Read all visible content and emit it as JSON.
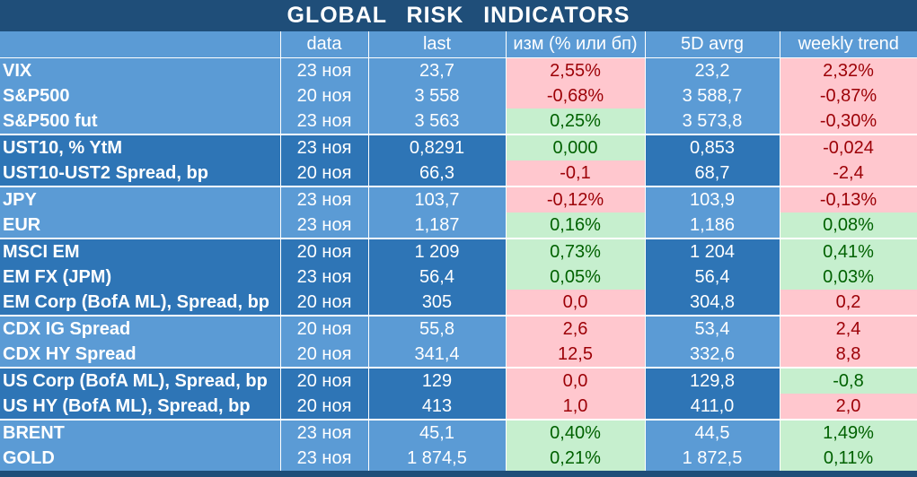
{
  "title": "GLOBAL   RISK   INDICATORS",
  "columns": [
    "",
    "data",
    "last",
    "изм (% или бп)",
    "5D avrg",
    "weekly trend"
  ],
  "rows": [
    {
      "name": "VIX",
      "date": "23 ноя",
      "last": "23,7",
      "chg": "2,55%",
      "chg_sign": "neg",
      "avg": "23,2",
      "trend": "2,32%",
      "trend_sign": "neg",
      "shade": "light",
      "group_end": false
    },
    {
      "name": "S&P500",
      "date": "20 ноя",
      "last": "3 558",
      "chg": "-0,68%",
      "chg_sign": "neg",
      "avg": "3 588,7",
      "trend": "-0,87%",
      "trend_sign": "neg",
      "shade": "light",
      "group_end": false
    },
    {
      "name": "S&P500 fut",
      "date": "23 ноя",
      "last": "3 563",
      "chg": "0,25%",
      "chg_sign": "pos",
      "avg": "3 573,8",
      "trend": "-0,30%",
      "trend_sign": "neg",
      "shade": "light",
      "group_end": true
    },
    {
      "name": "UST10, % YtM",
      "date": "23 ноя",
      "last": "0,8291",
      "chg": "0,000",
      "chg_sign": "pos",
      "avg": "0,853",
      "trend": "-0,024",
      "trend_sign": "neg",
      "shade": "dark",
      "group_end": false
    },
    {
      "name": "UST10-UST2 Spread, bp",
      "date": "20 ноя",
      "last": "66,3",
      "chg": "-0,1",
      "chg_sign": "neg",
      "avg": "68,7",
      "trend": "-2,4",
      "trend_sign": "neg",
      "shade": "dark",
      "group_end": true
    },
    {
      "name": "JPY",
      "date": "23 ноя",
      "last": "103,7",
      "chg": "-0,12%",
      "chg_sign": "neg",
      "avg": "103,9",
      "trend": "-0,13%",
      "trend_sign": "neg",
      "shade": "light",
      "group_end": false
    },
    {
      "name": "EUR",
      "date": "23 ноя",
      "last": "1,187",
      "chg": "0,16%",
      "chg_sign": "pos",
      "avg": "1,186",
      "trend": "0,08%",
      "trend_sign": "pos",
      "shade": "light",
      "group_end": true
    },
    {
      "name": "MSCI EM",
      "date": "20 ноя",
      "last": "1 209",
      "chg": "0,73%",
      "chg_sign": "pos",
      "avg": "1 204",
      "trend": "0,41%",
      "trend_sign": "pos",
      "shade": "dark",
      "group_end": false
    },
    {
      "name": "EM FX (JPM)",
      "date": "23 ноя",
      "last": "56,4",
      "chg": "0,05%",
      "chg_sign": "pos",
      "avg": "56,4",
      "trend": "0,03%",
      "trend_sign": "pos",
      "shade": "dark",
      "group_end": false
    },
    {
      "name": "EM Corp (BofA ML), Spread, bp",
      "date": "20 ноя",
      "last": "305",
      "chg": "0,0",
      "chg_sign": "neg",
      "avg": "304,8",
      "trend": "0,2",
      "trend_sign": "neg",
      "shade": "dark",
      "group_end": true
    },
    {
      "name": "CDX IG Spread",
      "date": "20 ноя",
      "last": "55,8",
      "chg": "2,6",
      "chg_sign": "neg",
      "avg": "53,4",
      "trend": "2,4",
      "trend_sign": "neg",
      "shade": "light",
      "group_end": false
    },
    {
      "name": "CDX HY Spread",
      "date": "20 ноя",
      "last": "341,4",
      "chg": "12,5",
      "chg_sign": "neg",
      "avg": "332,6",
      "trend": "8,8",
      "trend_sign": "neg",
      "shade": "light",
      "group_end": true
    },
    {
      "name": "US Corp (BofA ML), Spread, bp",
      "date": "20 ноя",
      "last": "129",
      "chg": "0,0",
      "chg_sign": "neg",
      "avg": "129,8",
      "trend": "-0,8",
      "trend_sign": "pos",
      "shade": "dark",
      "group_end": false
    },
    {
      "name": "US HY (BofA ML), Spread, bp",
      "date": "20 ноя",
      "last": "413",
      "chg": "1,0",
      "chg_sign": "neg",
      "avg": "411,0",
      "trend": "2,0",
      "trend_sign": "neg",
      "shade": "dark",
      "group_end": true
    },
    {
      "name": "BRENT",
      "date": "23 ноя",
      "last": "45,1",
      "chg": "0,40%",
      "chg_sign": "pos",
      "avg": "44,5",
      "trend": "1,49%",
      "trend_sign": "pos",
      "shade": "light",
      "group_end": false
    },
    {
      "name": "GOLD",
      "date": "23 ноя",
      "last": "1 874,5",
      "chg": "0,21%",
      "chg_sign": "pos",
      "avg": "1 872,5",
      "trend": "0,11%",
      "trend_sign": "pos",
      "shade": "light",
      "group_end": false
    }
  ],
  "colors": {
    "header_bg": "#1f4e79",
    "light_row": "#5b9bd5",
    "dark_row": "#2e75b6",
    "neg_bg": "#ffc7ce",
    "neg_text": "#9c0006",
    "pos_bg": "#c6efce",
    "pos_text": "#006100"
  }
}
